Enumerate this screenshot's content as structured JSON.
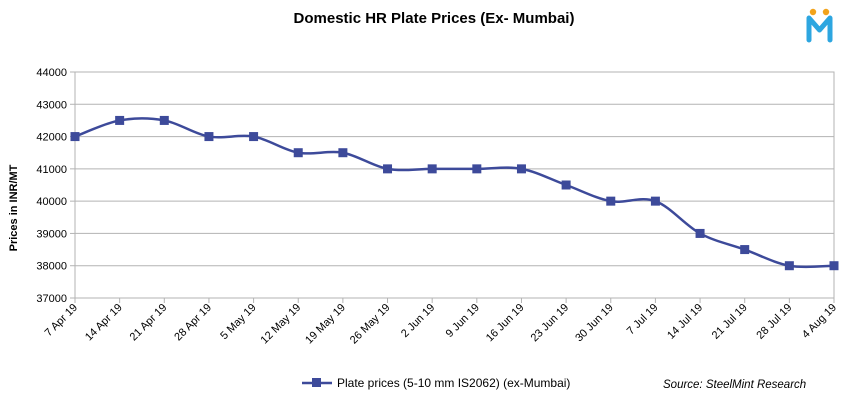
{
  "chart_data": {
    "type": "line",
    "title": "Domestic HR Plate Prices (Ex- Mumbai)",
    "ylabel": "Prices in INR/MT",
    "xlabel": "",
    "categories": [
      "7 Apr 19",
      "14 Apr 19",
      "21 Apr 19",
      "28 Apr 19",
      "5 May 19",
      "12 May 19",
      "19 May 19",
      "26 May 19",
      "2 Jun 19",
      "9 Jun 19",
      "16 Jun 19",
      "23 Jun 19",
      "30 Jun 19",
      "7 Jul 19",
      "14 Jul 19",
      "21 Jul 19",
      "28 Jul 19",
      "4 Aug 19"
    ],
    "series": [
      {
        "name": "Plate prices (5-10 mm IS2062) (ex-Mumbai)",
        "values": [
          42000,
          42500,
          42500,
          42000,
          42000,
          41500,
          41500,
          41000,
          41000,
          41000,
          41000,
          40500,
          40000,
          40000,
          39000,
          38500,
          38000,
          38000
        ],
        "color": "#3d4a9a",
        "marker": "square",
        "smooth": true
      }
    ],
    "ylim": [
      37000,
      44000
    ],
    "yticks": [
      37000,
      38000,
      39000,
      40000,
      41000,
      42000,
      43000,
      44000
    ],
    "grid": true,
    "legend": "bottom-center",
    "source": "Source: SteelMint Research"
  },
  "logo": {
    "letter": "M",
    "colors": {
      "dots": "#f2a31b",
      "letter": "#2da6e0"
    }
  }
}
